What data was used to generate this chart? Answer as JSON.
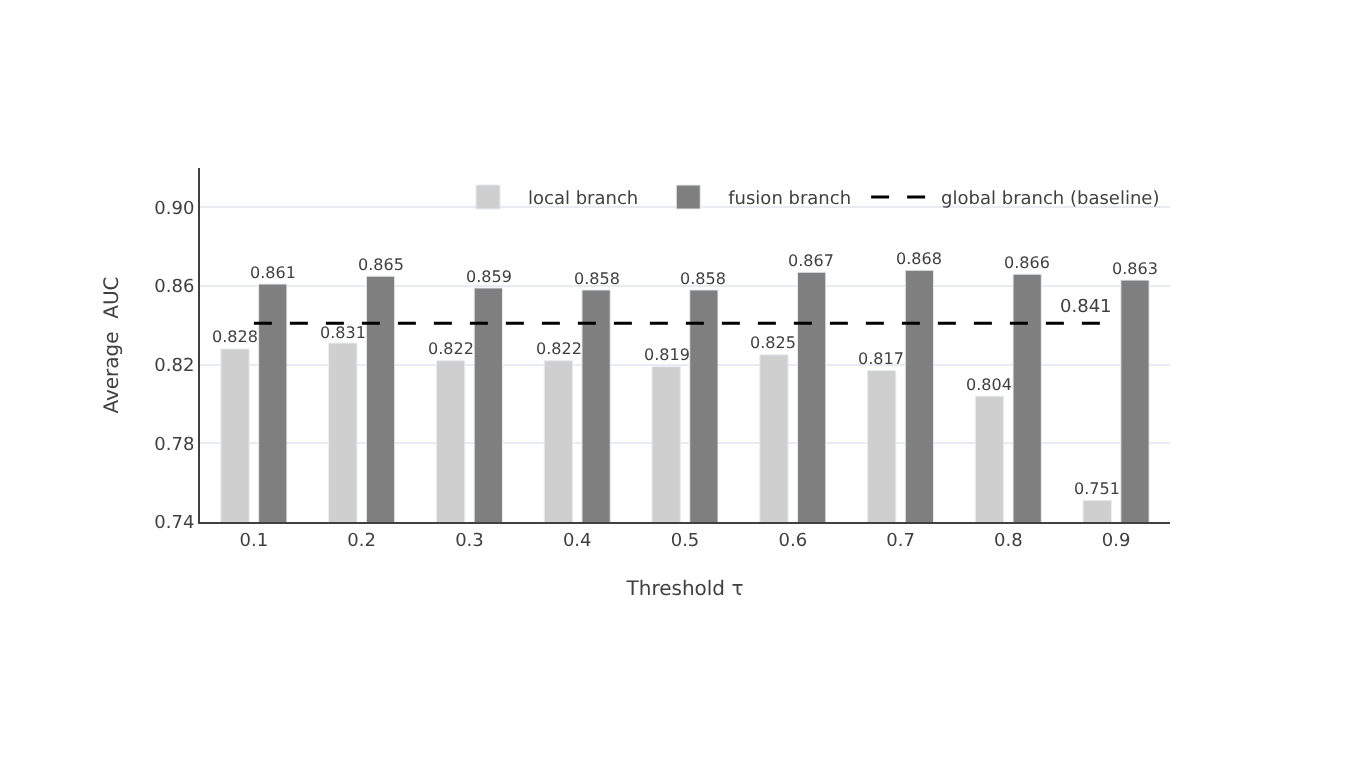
{
  "chart_data": {
    "type": "bar",
    "xlabel": "Threshold τ",
    "ylabel": "Average  AUC",
    "categories": [
      "0.1",
      "0.2",
      "0.3",
      "0.4",
      "0.5",
      "0.6",
      "0.7",
      "0.8",
      "0.9"
    ],
    "series": [
      {
        "name": "local branch",
        "color": "#d0cfcf",
        "values": [
          0.828,
          0.831,
          0.822,
          0.822,
          0.819,
          0.825,
          0.817,
          0.804,
          0.751
        ]
      },
      {
        "name": "fusion branch",
        "color": "#7f7f7f",
        "values": [
          0.861,
          0.865,
          0.859,
          0.858,
          0.858,
          0.867,
          0.868,
          0.866,
          0.863
        ]
      },
      {
        "name": "global branch (baseline)",
        "type": "line",
        "line_style": "dashed",
        "marker": "none",
        "color": "#000000",
        "values": [
          0.841,
          0.841,
          0.841,
          0.841,
          0.841,
          0.841,
          0.841,
          0.841,
          0.841
        ],
        "value_labels": [
          null,
          null,
          null,
          null,
          null,
          null,
          null,
          null,
          "0.841"
        ]
      }
    ],
    "data_labels": true,
    "ylim": [
      0.74,
      0.92
    ],
    "yticks": [
      {
        "value": 0.74,
        "label": "0.74"
      },
      {
        "value": 0.78,
        "label": "0.78"
      },
      {
        "value": 0.82,
        "label": "0.82"
      },
      {
        "value": 0.86,
        "label": "0.86"
      },
      {
        "value": 0.9,
        "label": "0.90"
      }
    ],
    "grid": "y",
    "legend": "top right"
  }
}
